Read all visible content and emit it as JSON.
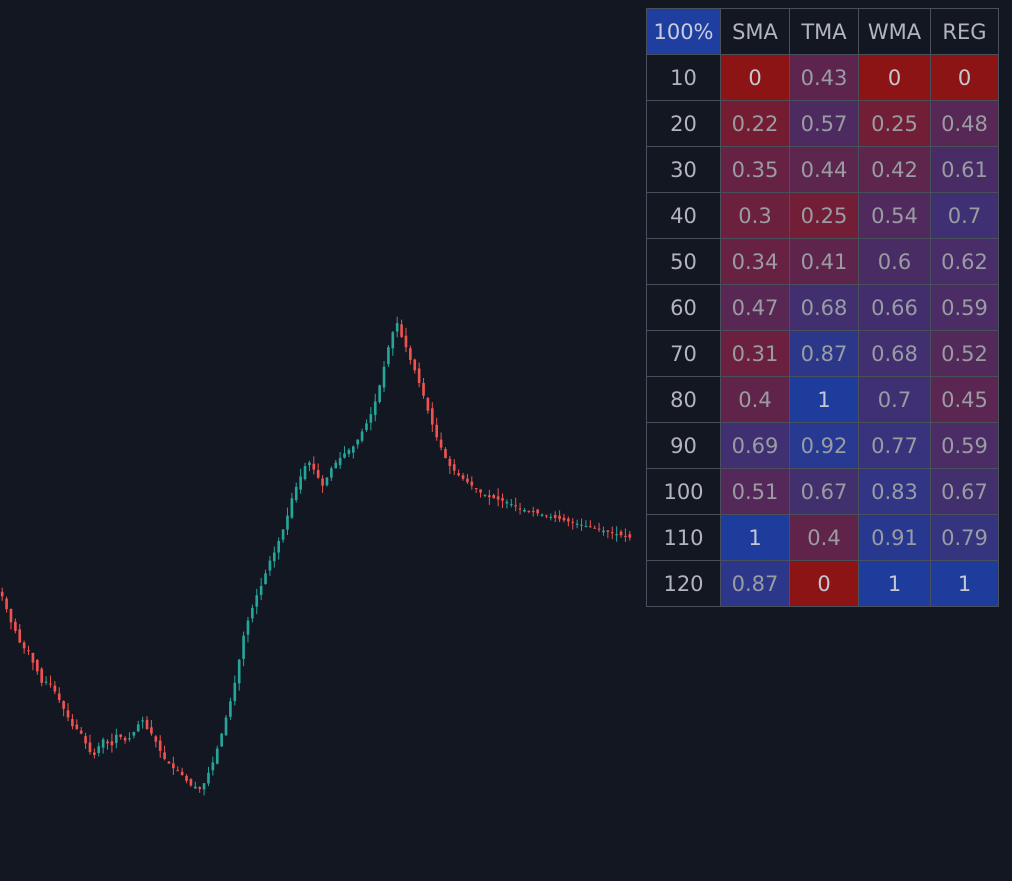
{
  "chart_data": {
    "type": "candlestick",
    "colors": {
      "background": "#131722",
      "up": "#26a69a",
      "down": "#ef5350",
      "cell_low": "#8c1414",
      "cell_high": "#1e3c9b"
    },
    "candles_close_approx": [
      620,
      598,
      575,
      560,
      540,
      530,
      525,
      505,
      490,
      470,
      472,
      468,
      455,
      440,
      425,
      410,
      395,
      390,
      382,
      365,
      350,
      345,
      360,
      372,
      365,
      362,
      380,
      376,
      370,
      374,
      385,
      398,
      405,
      390,
      382,
      368,
      352,
      338,
      330,
      322,
      318,
      310,
      300,
      292,
      290,
      286,
      296,
      314,
      332,
      356,
      382,
      410,
      438,
      470,
      510,
      552,
      578,
      600,
      622,
      638,
      660,
      682,
      696,
      716,
      736,
      760,
      790,
      810,
      828,
      846,
      852,
      840,
      826,
      812,
      826,
      842,
      852,
      860,
      868,
      874,
      880,
      892,
      906,
      920,
      936,
      958,
      986,
      1018,
      1052,
      1078,
      1094,
      1070,
      1052,
      1030,
      1012,
      990,
      968,
      942,
      918,
      896,
      878,
      860,
      846,
      838,
      830,
      824,
      818,
      812,
      806,
      800,
      796,
      792,
      790,
      788,
      786,
      784,
      780,
      776,
      772,
      770,
      768,
      766,
      764,
      762,
      760,
      758,
      756,
      754,
      752,
      750,
      748,
      746,
      744,
      742,
      740,
      738,
      736,
      734,
      732,
      730,
      728,
      726,
      724,
      722
    ],
    "table": {
      "corner": "100%",
      "columns": [
        "SMA",
        "TMA",
        "WMA",
        "REG"
      ],
      "rows": [
        {
          "period": "10",
          "values": [
            "0",
            "0.43",
            "0",
            "0"
          ]
        },
        {
          "period": "20",
          "values": [
            "0.22",
            "0.57",
            "0.25",
            "0.48"
          ]
        },
        {
          "period": "30",
          "values": [
            "0.35",
            "0.44",
            "0.42",
            "0.61"
          ]
        },
        {
          "period": "40",
          "values": [
            "0.3",
            "0.25",
            "0.54",
            "0.7"
          ]
        },
        {
          "period": "50",
          "values": [
            "0.34",
            "0.41",
            "0.6",
            "0.62"
          ]
        },
        {
          "period": "60",
          "values": [
            "0.47",
            "0.68",
            "0.66",
            "0.59"
          ]
        },
        {
          "period": "70",
          "values": [
            "0.31",
            "0.87",
            "0.68",
            "0.52"
          ]
        },
        {
          "period": "80",
          "values": [
            "0.4",
            "1",
            "0.7",
            "0.45"
          ]
        },
        {
          "period": "90",
          "values": [
            "0.69",
            "0.92",
            "0.77",
            "0.59"
          ]
        },
        {
          "period": "100",
          "values": [
            "0.51",
            "0.67",
            "0.83",
            "0.67"
          ]
        },
        {
          "period": "110",
          "values": [
            "1",
            "0.4",
            "0.91",
            "0.79"
          ]
        },
        {
          "period": "120",
          "values": [
            "0.87",
            "0",
            "1",
            "1"
          ]
        }
      ]
    }
  }
}
